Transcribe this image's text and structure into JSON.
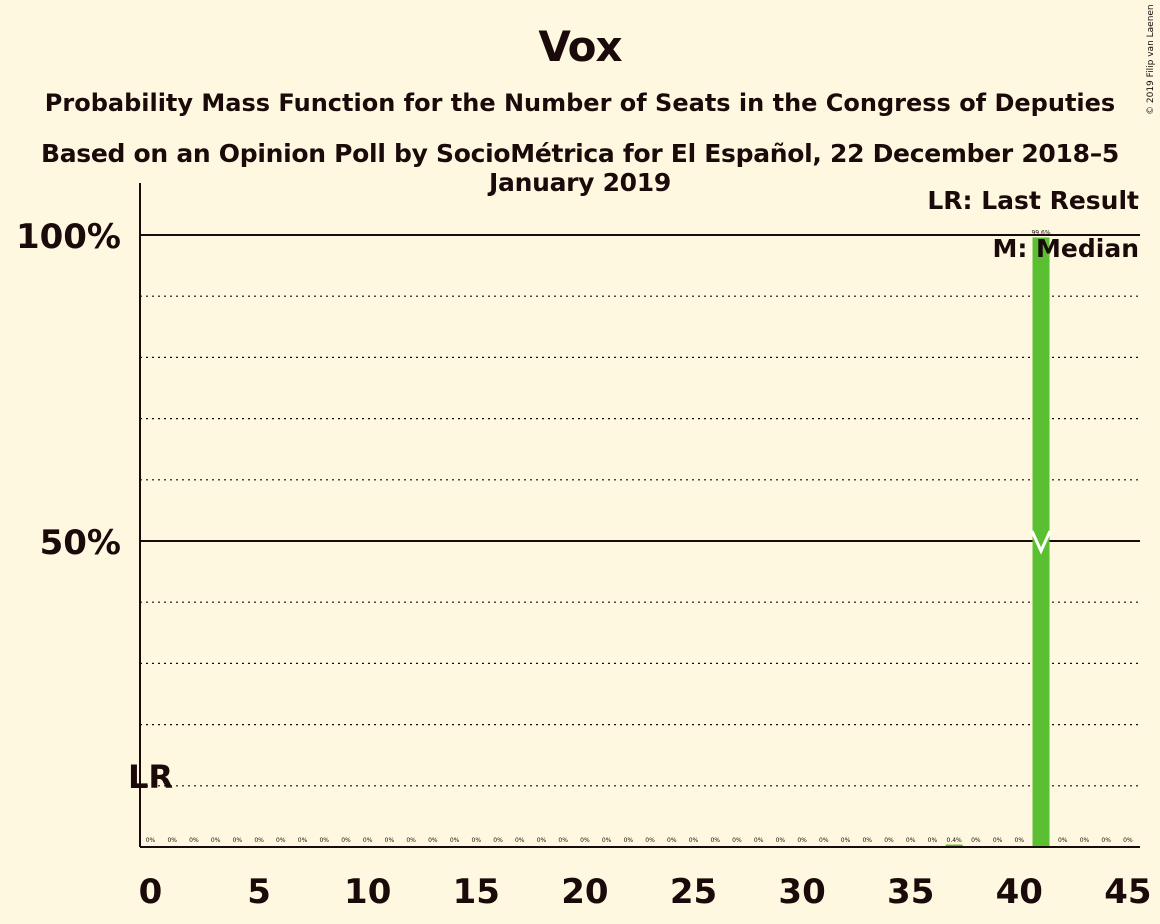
{
  "header": {
    "title": "Vox",
    "subtitle_1": "Probability Mass Function for the Number of Seats in the Congress of Deputies",
    "subtitle_2": "Based on an Opinion Poll by SocioMétrica for El Español, 22 December 2018–5 January 2019",
    "copyright": "© 2019 Filip van Laenen"
  },
  "legend": {
    "last_result": "LR: Last Result",
    "median": "M: Median"
  },
  "chart_data": {
    "type": "bar",
    "title": "Vox",
    "xlabel": "",
    "ylabel": "",
    "x_ticks": [
      0,
      5,
      10,
      15,
      20,
      25,
      30,
      35,
      40,
      45
    ],
    "y_ticks": [
      {
        "value": 50,
        "label": "50%"
      },
      {
        "value": 100,
        "label": "100%"
      }
    ],
    "ylim": [
      0,
      100
    ],
    "xlim": [
      0,
      45
    ],
    "grid": "dotted every 10%, solid at 50% and 100%",
    "seats": [
      0,
      1,
      2,
      3,
      4,
      5,
      6,
      7,
      8,
      9,
      10,
      11,
      12,
      13,
      14,
      15,
      16,
      17,
      18,
      19,
      20,
      21,
      22,
      23,
      24,
      25,
      26,
      27,
      28,
      29,
      30,
      31,
      32,
      33,
      34,
      35,
      36,
      37,
      38,
      39,
      40,
      41,
      42,
      43,
      44,
      45
    ],
    "values": [
      0,
      0,
      0,
      0,
      0,
      0,
      0,
      0,
      0,
      0,
      0,
      0,
      0,
      0,
      0,
      0,
      0,
      0,
      0,
      0,
      0,
      0,
      0,
      0,
      0,
      0,
      0,
      0,
      0,
      0,
      0,
      0,
      0,
      0,
      0,
      0,
      0,
      0.4,
      0,
      0,
      0,
      99.6,
      0,
      0,
      0,
      0
    ],
    "value_labels": [
      "0%",
      "0%",
      "0%",
      "0%",
      "0%",
      "0%",
      "0%",
      "0%",
      "0%",
      "0%",
      "0%",
      "0%",
      "0%",
      "0%",
      "0%",
      "0%",
      "0%",
      "0%",
      "0%",
      "0%",
      "0%",
      "0%",
      "0%",
      "0%",
      "0%",
      "0%",
      "0%",
      "0%",
      "0%",
      "0%",
      "0%",
      "0%",
      "0%",
      "0%",
      "0%",
      "0%",
      "0%",
      "0.4%",
      "0%",
      "0%",
      "0%",
      "99.6%",
      "0%",
      "0%",
      "0%",
      "0%"
    ],
    "last_result": {
      "seat": 0,
      "label": "LR"
    },
    "median": {
      "seat": 41,
      "marker": "M"
    },
    "colors": {
      "bar": "#5bbf32",
      "background": "#fff8e1",
      "text": "#1a0a0a",
      "median_mark": "#ffffff"
    }
  }
}
